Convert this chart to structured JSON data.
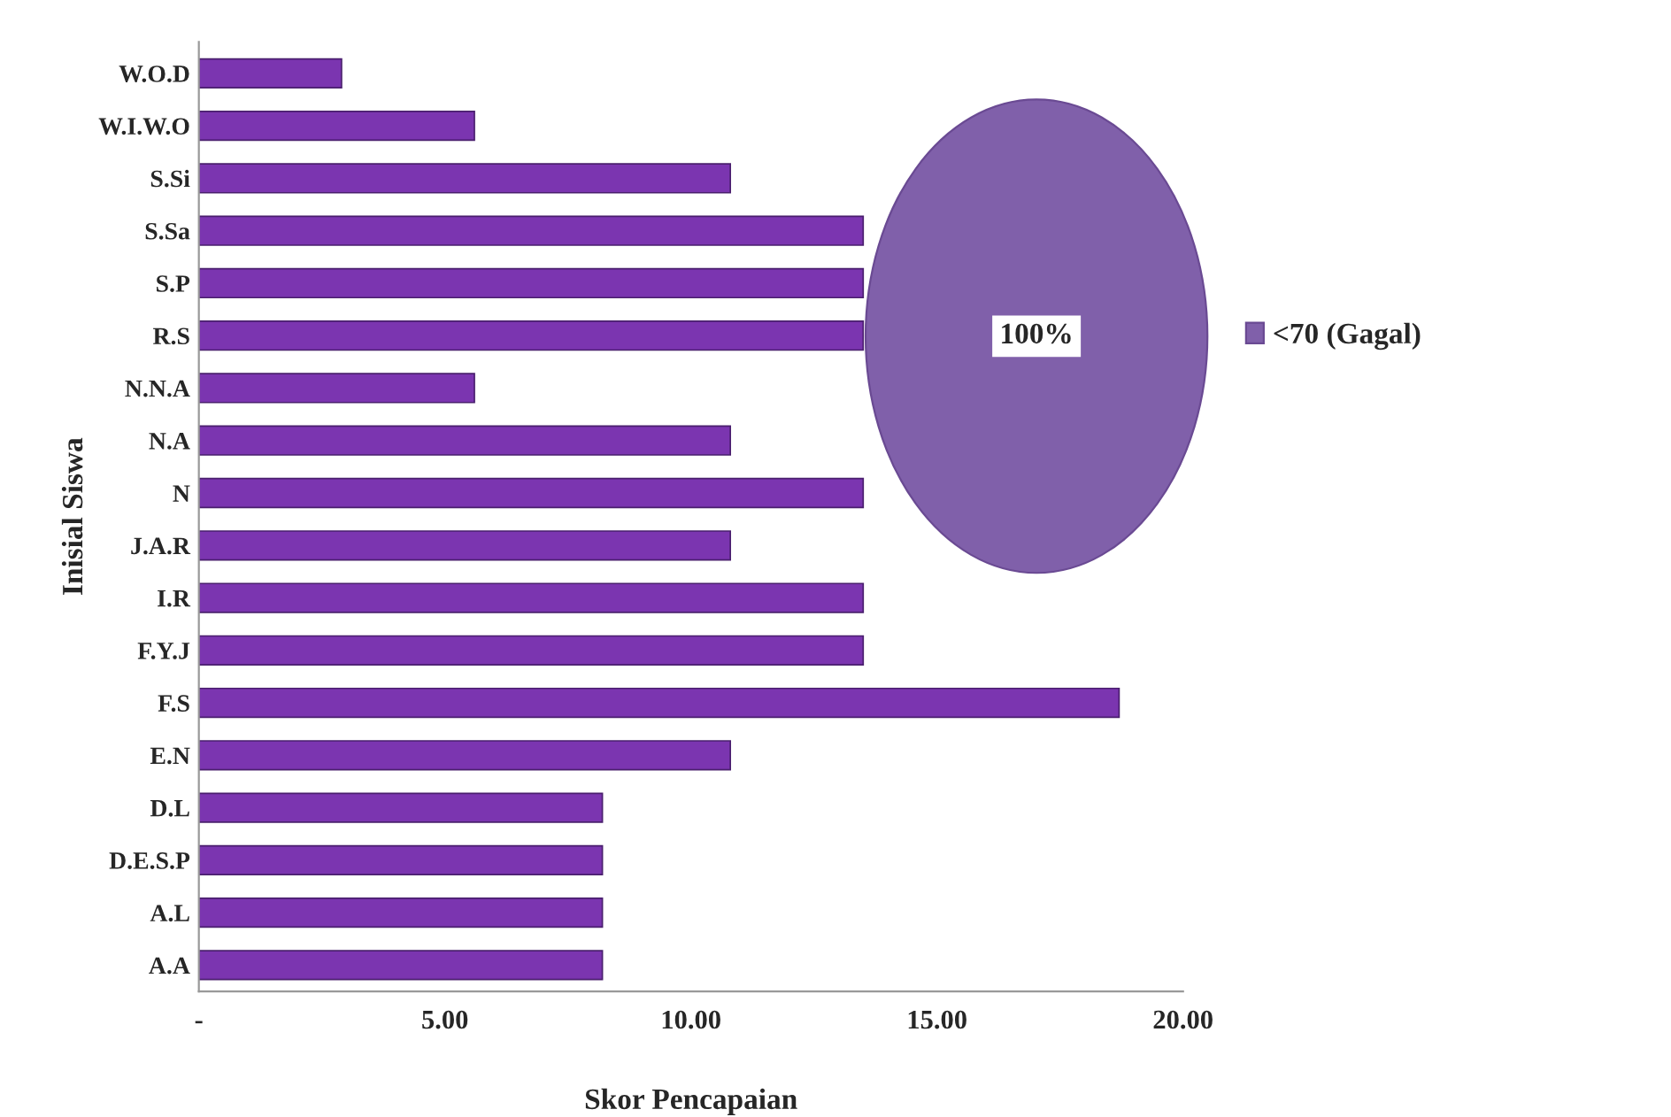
{
  "chart_data": [
    {
      "type": "bar",
      "orientation": "horizontal",
      "xlabel": "Skor Pencapaian",
      "ylabel": "Inisial Siswa",
      "categories": [
        "W.O.D",
        "W.I.W.O",
        "S.Si",
        "S.Sa",
        "S.P",
        "R.S",
        "N.N.A",
        "N.A",
        "N",
        "J.A.R",
        "I.R",
        "F.Y.J",
        "F.S",
        "E.N",
        "D.L",
        "D.E.S.P",
        "A.L",
        "A.A"
      ],
      "values": [
        2.9,
        5.6,
        10.8,
        13.5,
        13.5,
        13.5,
        5.6,
        10.8,
        13.5,
        10.8,
        13.5,
        13.5,
        18.7,
        10.8,
        8.2,
        8.2,
        8.2,
        8.2
      ],
      "color": "#7b35b0",
      "xlim": [
        0,
        20
      ],
      "xticks": [
        {
          "value": 0,
          "label": "-"
        },
        {
          "value": 5,
          "label": "5.00"
        },
        {
          "value": 10,
          "label": "10.00"
        },
        {
          "value": 15,
          "label": "15.00"
        },
        {
          "value": 20,
          "label": "20.00"
        }
      ],
      "grid": false
    },
    {
      "type": "pie",
      "categories": [
        "<70 (Gagal)"
      ],
      "values": [
        100
      ],
      "colors": [
        "#8060aa"
      ],
      "value_labels": [
        "100%"
      ],
      "legend": "right"
    }
  ]
}
